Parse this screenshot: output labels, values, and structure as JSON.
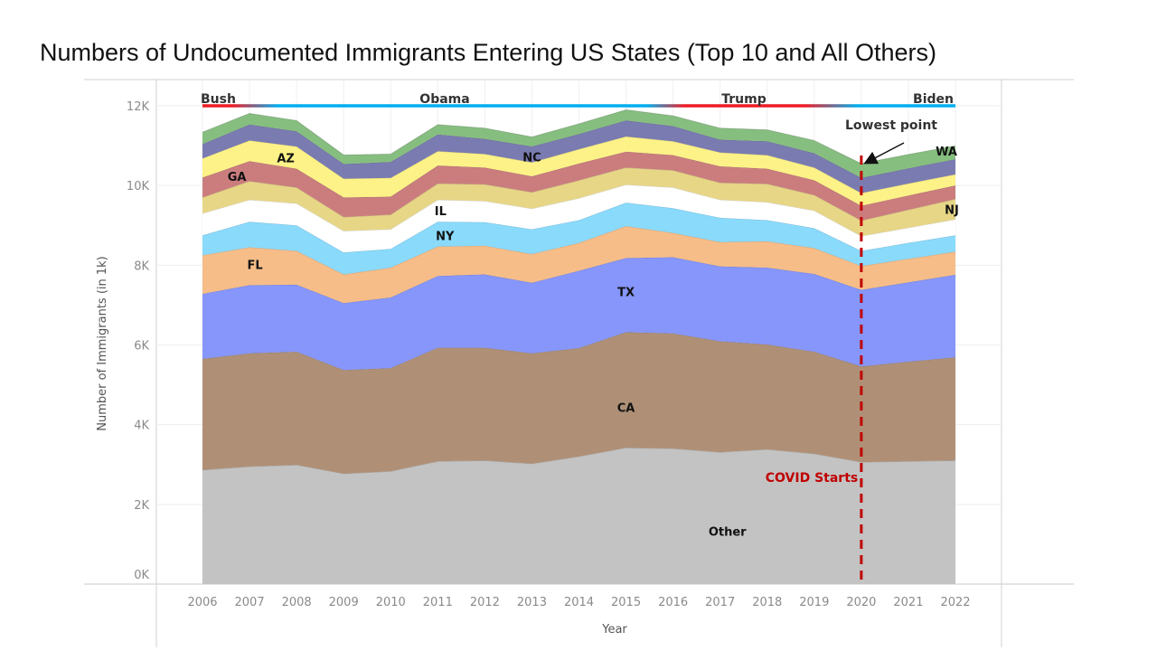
{
  "chart_data": {
    "type": "area",
    "stacked": true,
    "title": "Numbers of Undocumented Immigrants Entering US States (Top 10 and All Others)",
    "xlabel": "Year",
    "ylabel": "Number of Immigrants (in 1k)",
    "ylim": [
      0,
      12
    ],
    "yticks": [
      "0K",
      "2K",
      "4K",
      "6K",
      "8K",
      "10K",
      "12K"
    ],
    "grid": true,
    "x": [
      2006,
      2007,
      2008,
      2009,
      2010,
      2011,
      2012,
      2013,
      2014,
      2015,
      2016,
      2017,
      2018,
      2019,
      2020,
      2021,
      2022
    ],
    "series": [
      {
        "name": "Other",
        "label": "Other",
        "color": "#c0c0c0",
        "values": [
          2.86,
          2.95,
          2.99,
          2.77,
          2.83,
          3.08,
          3.1,
          3.02,
          3.2,
          3.42,
          3.4,
          3.31,
          3.38,
          3.27,
          3.06,
          3.08,
          3.1
        ]
      },
      {
        "name": "CA",
        "label": "CA",
        "color": "#ab8a70",
        "values": [
          2.79,
          2.84,
          2.84,
          2.6,
          2.59,
          2.85,
          2.83,
          2.77,
          2.72,
          2.9,
          2.89,
          2.78,
          2.63,
          2.56,
          2.4,
          2.5,
          2.59
        ]
      },
      {
        "name": "TX",
        "label": "TX",
        "color": "#8090fa",
        "values": [
          1.63,
          1.71,
          1.68,
          1.68,
          1.77,
          1.8,
          1.84,
          1.77,
          1.94,
          1.86,
          1.91,
          1.88,
          1.93,
          1.95,
          1.92,
          1.99,
          2.07
        ]
      },
      {
        "name": "FL",
        "label": "FL",
        "color": "#f5b982",
        "values": [
          0.97,
          0.95,
          0.85,
          0.72,
          0.75,
          0.74,
          0.72,
          0.72,
          0.7,
          0.8,
          0.61,
          0.61,
          0.66,
          0.65,
          0.6,
          0.59,
          0.58
        ]
      },
      {
        "name": "NY",
        "label": "NY",
        "color": "#84d8fc",
        "values": [
          0.5,
          0.64,
          0.64,
          0.55,
          0.47,
          0.62,
          0.59,
          0.62,
          0.57,
          0.59,
          0.62,
          0.61,
          0.53,
          0.5,
          0.38,
          0.4,
          0.41
        ]
      },
      {
        "name": "IL",
        "label": "IL",
        "color": "#ffffff",
        "values": [
          0.55,
          0.55,
          0.55,
          0.54,
          0.49,
          0.55,
          0.53,
          0.52,
          0.55,
          0.45,
          0.52,
          0.45,
          0.45,
          0.44,
          0.37,
          0.38,
          0.4
        ]
      },
      {
        "name": "NJ",
        "label": "NJ",
        "color": "#e6d480",
        "values": [
          0.4,
          0.47,
          0.4,
          0.35,
          0.37,
          0.41,
          0.42,
          0.41,
          0.45,
          0.43,
          0.43,
          0.43,
          0.46,
          0.39,
          0.39,
          0.45,
          0.51
        ]
      },
      {
        "name": "GA",
        "label": "GA",
        "color": "#c87677",
        "values": [
          0.5,
          0.5,
          0.47,
          0.49,
          0.45,
          0.45,
          0.42,
          0.4,
          0.42,
          0.4,
          0.38,
          0.41,
          0.38,
          0.37,
          0.37,
          0.36,
          0.34
        ]
      },
      {
        "name": "AZ",
        "label": "AZ",
        "color": "#fdf181",
        "values": [
          0.48,
          0.52,
          0.56,
          0.47,
          0.47,
          0.36,
          0.34,
          0.35,
          0.36,
          0.38,
          0.35,
          0.35,
          0.34,
          0.32,
          0.32,
          0.3,
          0.28
        ]
      },
      {
        "name": "NC",
        "label": "NC",
        "color": "#7374ad",
        "values": [
          0.36,
          0.4,
          0.38,
          0.37,
          0.4,
          0.42,
          0.38,
          0.4,
          0.38,
          0.4,
          0.38,
          0.32,
          0.35,
          0.36,
          0.38,
          0.38,
          0.38
        ]
      },
      {
        "name": "WA",
        "label": "WA",
        "color": "#80ba78",
        "values": [
          0.3,
          0.28,
          0.27,
          0.23,
          0.2,
          0.25,
          0.27,
          0.24,
          0.26,
          0.27,
          0.26,
          0.29,
          0.29,
          0.32,
          0.36,
          0.35,
          0.34
        ]
      }
    ],
    "presidents": [
      {
        "name": "Bush",
        "color": "#ee1c25"
      },
      {
        "name": "Obama",
        "color": "#00aeef"
      },
      {
        "name": "Trump",
        "color": "#ee1c25"
      },
      {
        "name": "Biden",
        "color": "#00aeef"
      }
    ],
    "annotations": {
      "lowest_point": "Lowest point",
      "covid": "COVID Starts",
      "covid_year": 2020,
      "covid_color": "#c00000"
    }
  }
}
